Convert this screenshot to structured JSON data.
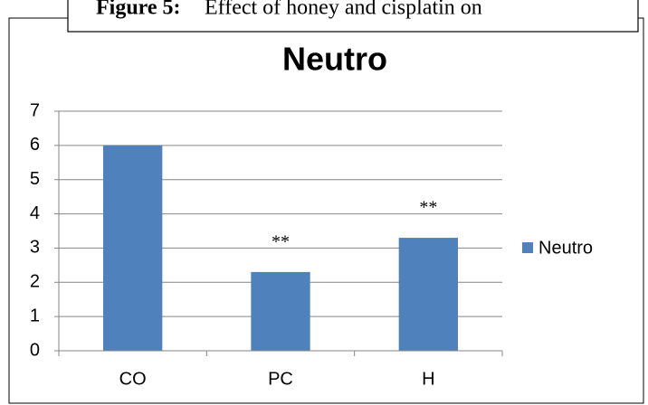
{
  "chart_data": {
    "type": "bar",
    "figure_label": "Figure 5:",
    "caption": "Effect of honey and cisplatin on",
    "title": "Neutro",
    "categories": [
      "CO",
      "PC",
      "H"
    ],
    "series": [
      {
        "name": "Neutro",
        "color": "#4f81bd",
        "values": [
          6,
          2.3,
          3.3
        ]
      }
    ],
    "bar_labels": [
      null,
      "**",
      "**"
    ],
    "ylim": [
      0,
      7
    ],
    "yticks": [
      0,
      1,
      2,
      3,
      4,
      5,
      6,
      7
    ],
    "grid": true,
    "legend": "right"
  }
}
